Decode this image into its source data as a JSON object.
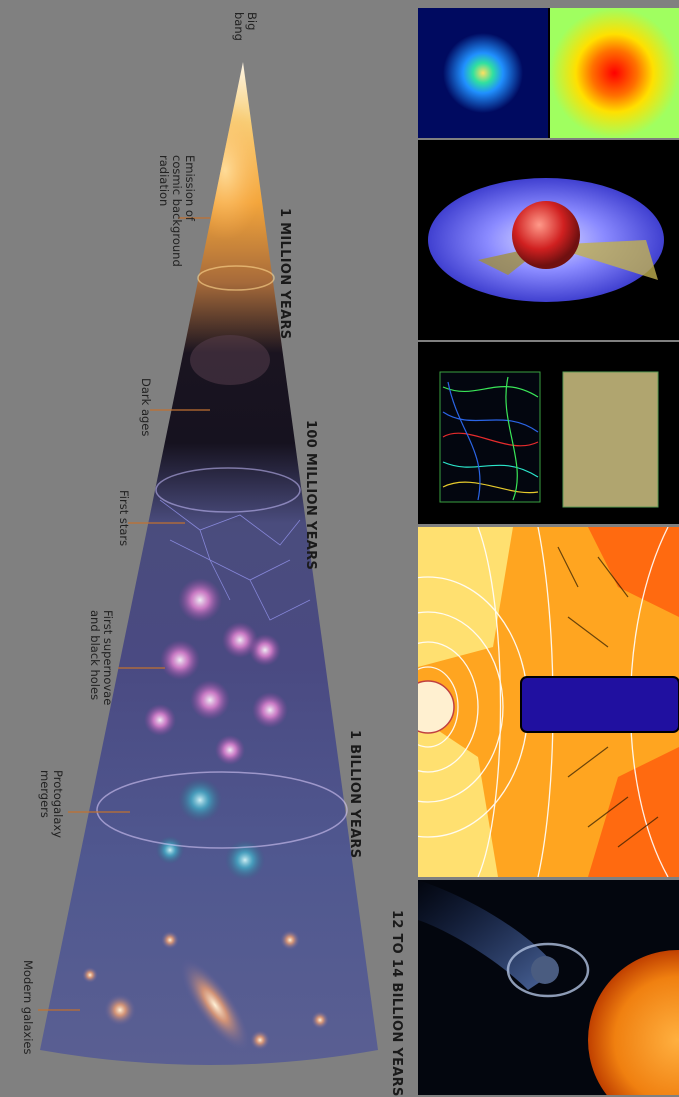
{
  "epochs": {
    "e1": "1 MILLION YEARS",
    "e2": "100 MILLION YEARS",
    "e3": "1 BILLION YEARS",
    "e4": "12 TO 14 BILLION YEARS"
  },
  "stages": {
    "big_bang": "Big\nbang",
    "cmb": "Emission of\ncosmic background\nradiation",
    "dark_ages": "Dark ages",
    "first_stars": "First stars",
    "supernovae": "First supernovae\nand black holes",
    "protogalaxy": "Protogalaxy\nmergers",
    "modern": "Modern galaxies"
  },
  "colors": {
    "background": "#808080",
    "panel_bg": "#000000",
    "cone_edge": "#d8d8e6"
  },
  "panels": [
    "density-heatmaps",
    "accretion-disk-model",
    "magnetic-field-cubes",
    "velocity-field-streamlines",
    "exoplanet-and-star"
  ]
}
